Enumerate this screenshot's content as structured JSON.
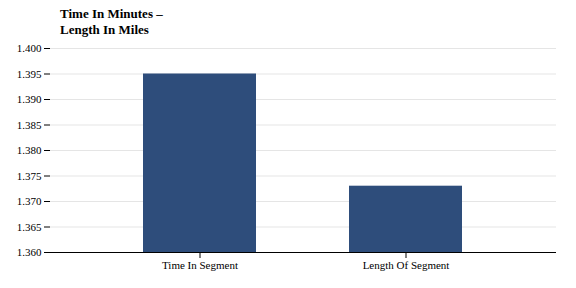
{
  "chart_data": {
    "type": "bar",
    "title": "Time In Minutes –\nLength In Miles",
    "categories": [
      "Time In Segment",
      "Length Of Segment"
    ],
    "values": [
      1.395,
      1.373
    ],
    "color": "#2E4D7B",
    "ylim": [
      1.36,
      1.4
    ],
    "yticks": [
      {
        "value": 1.36,
        "label": "1.360"
      },
      1.365,
      {
        "value": 1.37,
        "label": "1.370"
      },
      1.375,
      {
        "value": 1.38,
        "label": "1.380"
      },
      1.385,
      {
        "value": 1.39,
        "label": "1.390"
      },
      1.395,
      {
        "value": 1.4,
        "label": "1.400"
      }
    ],
    "grid": true
  }
}
